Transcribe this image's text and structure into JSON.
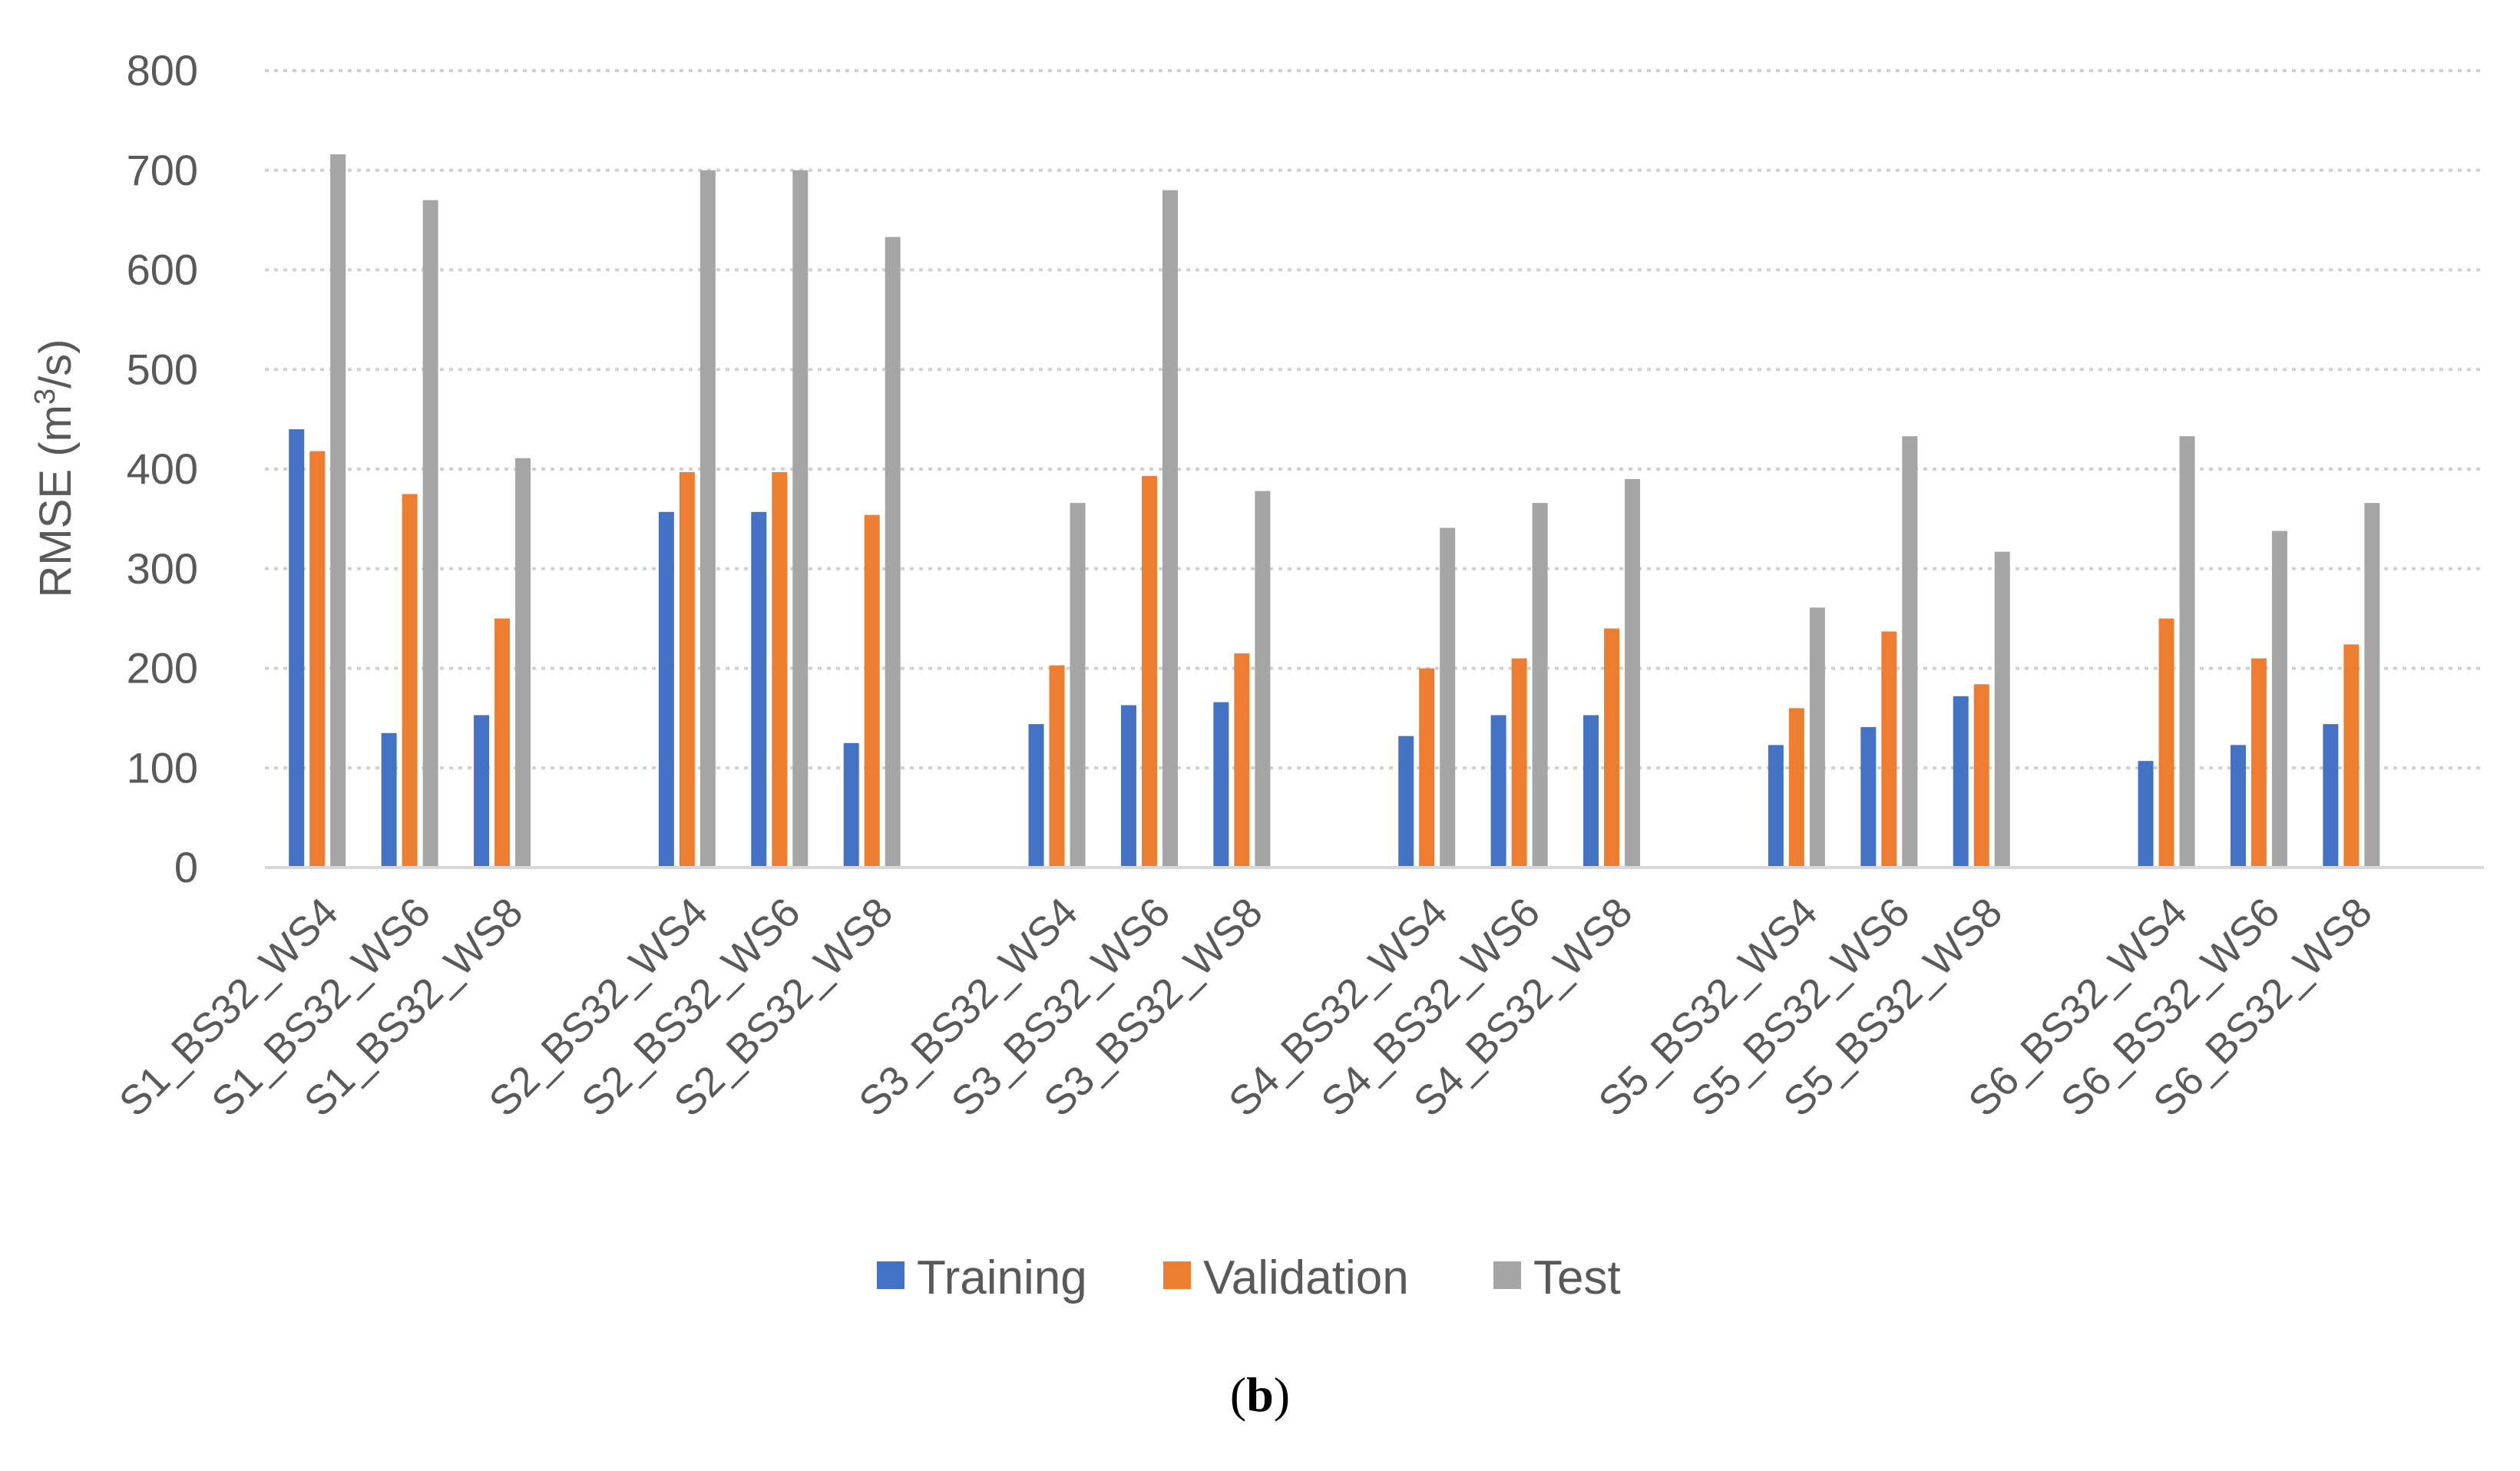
{
  "chart_data": {
    "type": "bar",
    "ylabel": "RMSE (m³/s)",
    "ylabel_parts": [
      "RMSE (m",
      "3",
      "/s)"
    ],
    "ylim": [
      0,
      800
    ],
    "yticks": [
      0,
      100,
      200,
      300,
      400,
      500,
      600,
      700,
      800
    ],
    "grid": true,
    "legend_position": "bottom",
    "groups": [
      [
        "S1_BS32_WS4",
        "S1_BS32_WS6",
        "S1_BS32_WS8"
      ],
      [
        "S2_BS32_WS4",
        "S2_BS32_WS6",
        "S2_BS32_WS8"
      ],
      [
        "S3_BS32_WS4",
        "S3_BS32_WS6",
        "S3_BS32_WS8"
      ],
      [
        "S4_BS32_WS4",
        "S4_BS32_WS6",
        "S4_BS32_WS8"
      ],
      [
        "S5_BS32_WS4",
        "S5_BS32_WS6",
        "S5_BS32_WS8"
      ],
      [
        "S6_BS32_WS4",
        "S6_BS32_WS6",
        "S6_BS32_WS8"
      ]
    ],
    "series": [
      {
        "name": "Training",
        "color": "#4472C4",
        "values": [
          440,
          135,
          153,
          357,
          357,
          125,
          144,
          163,
          166,
          132,
          153,
          153,
          123,
          141,
          172,
          107,
          123,
          144
        ]
      },
      {
        "name": "Validation",
        "color": "#ED7D31",
        "values": [
          418,
          375,
          250,
          397,
          397,
          354,
          203,
          393,
          215,
          200,
          210,
          240,
          160,
          237,
          184,
          250,
          210,
          224
        ]
      },
      {
        "name": "Test",
        "color": "#A5A5A5",
        "values": [
          716,
          670,
          411,
          700,
          700,
          633,
          366,
          680,
          378,
          341,
          366,
          390,
          261,
          433,
          317,
          433,
          338,
          366
        ]
      }
    ]
  },
  "caption": {
    "open": "(",
    "label": "b",
    "close": ")"
  }
}
